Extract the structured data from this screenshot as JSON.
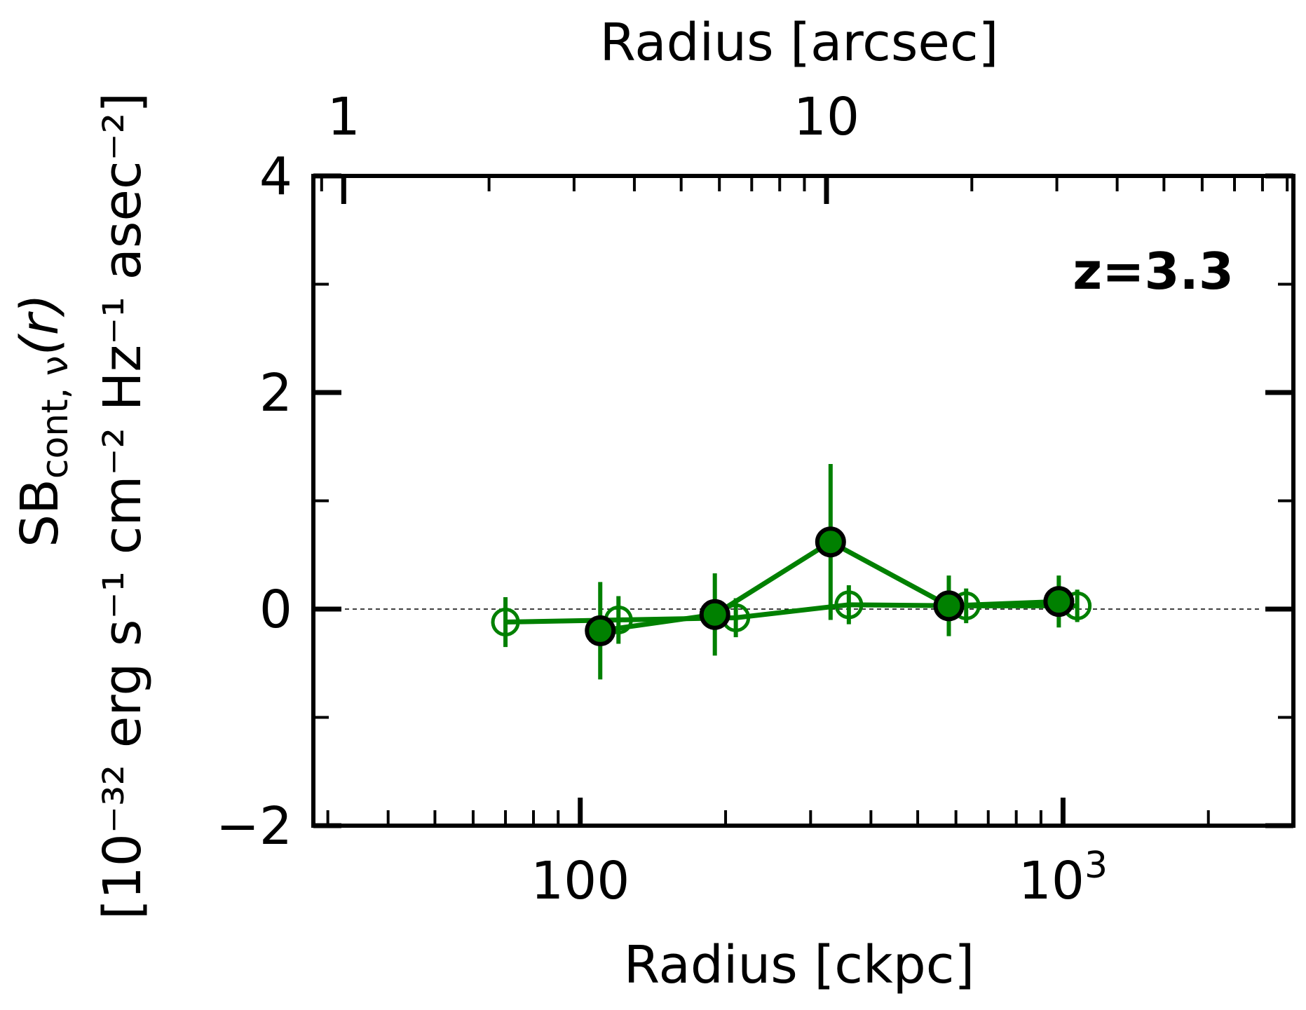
{
  "chart_data": {
    "type": "scatter",
    "title": "",
    "xlabel": "Radius [ckpc]",
    "x2label": "Radius [arcsec]",
    "ylabel_line1": "SB",
    "ylabel_sub": "cont, ν",
    "ylabel_paren": "(r)",
    "ylabel_line2": "[10⁻³² erg s⁻¹ cm⁻² Hz⁻¹ asec⁻²]",
    "xscale": "log",
    "xlim": [
      28,
      3000
    ],
    "ylim": [
      -2,
      4
    ],
    "yticks": [
      -2,
      0,
      2,
      4
    ],
    "ytick_labels": [
      "−2",
      "0",
      "2",
      "4"
    ],
    "xtick_major": [
      100,
      1000
    ],
    "xtick_labels": [
      "100",
      "10³"
    ],
    "x2tick_major": [
      1,
      10
    ],
    "x2tick_labels": [
      "1",
      "10"
    ],
    "arcsec_per_ckpc": 0.0309,
    "reference_line": 0,
    "annotation": "z=3.3",
    "color": "#008000",
    "series": [
      {
        "marker": "filled",
        "x": [
          110,
          190,
          330,
          580,
          980
        ],
        "y": [
          -0.2,
          -0.05,
          0.62,
          0.03,
          0.07
        ],
        "yerr": [
          0.45,
          0.38,
          0.72,
          0.28,
          0.24
        ]
      },
      {
        "marker": "open",
        "x": [
          70,
          120,
          210,
          360,
          630,
          1070
        ],
        "y": [
          -0.12,
          -0.1,
          -0.08,
          0.04,
          0.03,
          0.03
        ],
        "yerr": [
          0.23,
          0.22,
          0.18,
          0.18,
          0.16,
          0.15
        ]
      }
    ]
  }
}
